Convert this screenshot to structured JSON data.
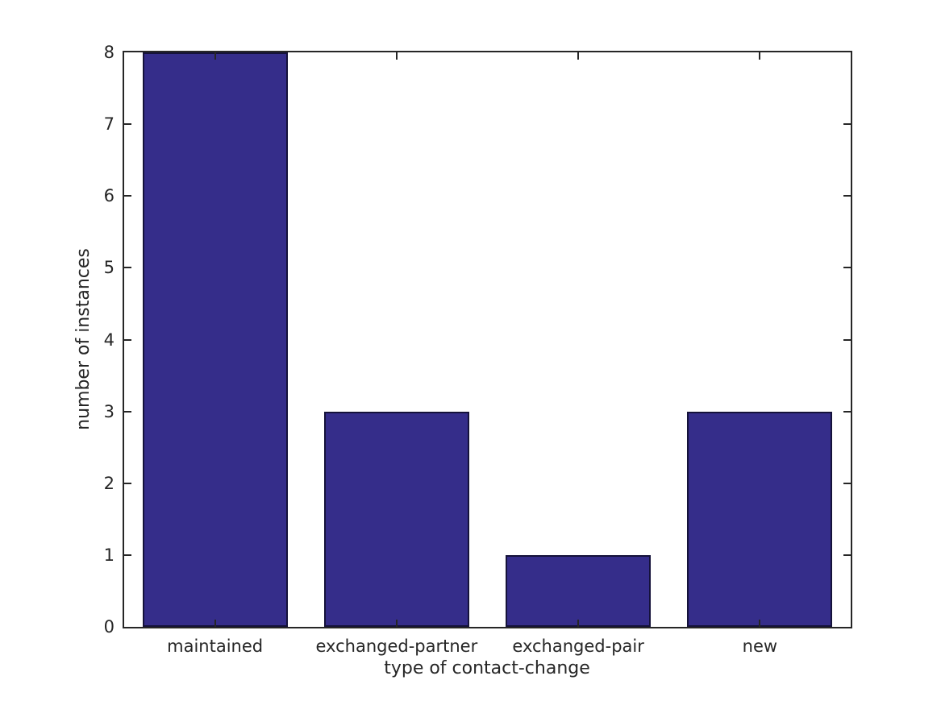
{
  "chart_data": {
    "type": "bar",
    "title": "",
    "categories": [
      "maintained",
      "exchanged-partner",
      "exchanged-pair",
      "new"
    ],
    "values": [
      8,
      3,
      1,
      3
    ],
    "xlabel": "type of contact-change",
    "ylabel": "number of instances",
    "ylim": [
      0,
      8
    ],
    "yticks": [
      "0",
      "1",
      "2",
      "3",
      "4",
      "5",
      "6",
      "7",
      "8"
    ],
    "bar_width_fraction": 0.8,
    "grid": false,
    "legend_position": "none",
    "colors": {
      "bar_fill": "#352d8a",
      "bar_edge": "#15123a",
      "axis": "#262626",
      "text": "#262626",
      "background": "#ffffff"
    }
  }
}
